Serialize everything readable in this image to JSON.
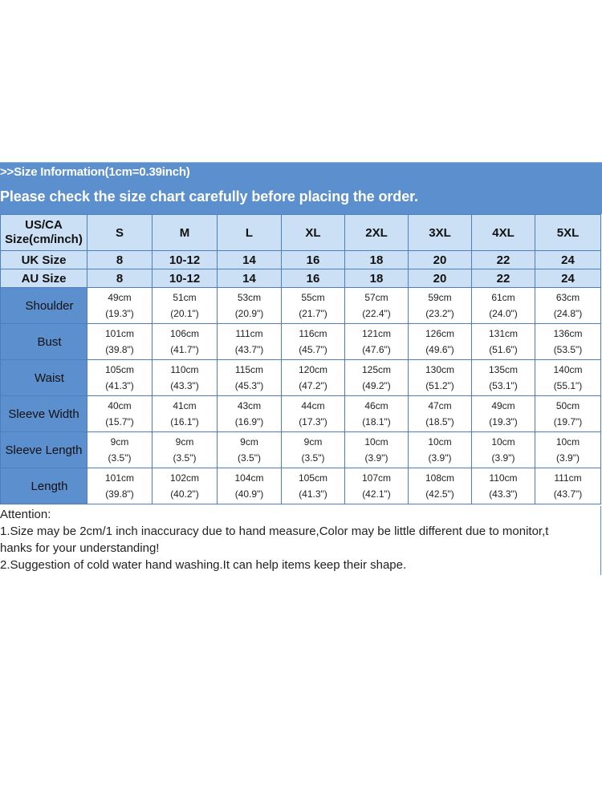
{
  "header": {
    "info": ">>Size Information(1cm=0.39inch)",
    "notice": "Please check the size chart carefully before placing the order."
  },
  "table": {
    "corner_line1": "US/CA",
    "corner_line2": "Size(cm/inch)",
    "sizes": [
      "S",
      "M",
      "L",
      "XL",
      "2XL",
      "3XL",
      "4XL",
      "5XL"
    ],
    "uk_label": "UK Size",
    "uk": [
      "8",
      "10-12",
      "14",
      "16",
      "18",
      "20",
      "22",
      "24"
    ],
    "au_label": "AU Size",
    "au": [
      "8",
      "10-12",
      "14",
      "16",
      "18",
      "20",
      "22",
      "24"
    ],
    "measurements": [
      {
        "label": "Shoulder",
        "cm": [
          "49cm",
          "51cm",
          "53cm",
          "55cm",
          "57cm",
          "59cm",
          "61cm",
          "63cm"
        ],
        "inch": [
          "(19.3\")",
          "(20.1\")",
          "(20.9\")",
          "(21.7\")",
          "(22.4\")",
          "(23.2\")",
          "(24.0\")",
          "(24.8\")"
        ]
      },
      {
        "label": "Bust",
        "cm": [
          "101cm",
          "106cm",
          "111cm",
          "116cm",
          "121cm",
          "126cm",
          "131cm",
          "136cm"
        ],
        "inch": [
          "(39.8\")",
          "(41.7\")",
          "(43.7\")",
          "(45.7\")",
          "(47.6\")",
          "(49.6\")",
          "(51.6\")",
          "(53.5\")"
        ]
      },
      {
        "label": "Waist",
        "cm": [
          "105cm",
          "110cm",
          "115cm",
          "120cm",
          "125cm",
          "130cm",
          "135cm",
          "140cm"
        ],
        "inch": [
          "(41.3\")",
          "(43.3\")",
          "(45.3\")",
          "(47.2\")",
          "(49.2\")",
          "(51.2\")",
          "(53.1\")",
          "(55.1\")"
        ]
      },
      {
        "label": "Sleeve Width",
        "cm": [
          "40cm",
          "41cm",
          "43cm",
          "44cm",
          "46cm",
          "47cm",
          "49cm",
          "50cm"
        ],
        "inch": [
          "(15.7\")",
          "(16.1\")",
          "(16.9\")",
          "(17.3\")",
          "(18.1\")",
          "(18.5\")",
          "(19.3\")",
          "(19.7\")"
        ]
      },
      {
        "label": "Sleeve Length",
        "cm": [
          "9cm",
          "9cm",
          "9cm",
          "9cm",
          "10cm",
          "10cm",
          "10cm",
          "10cm"
        ],
        "inch": [
          "(3.5\")",
          "(3.5\")",
          "(3.5\")",
          "(3.5\")",
          "(3.9\")",
          "(3.9\")",
          "(3.9\")",
          "(3.9\")"
        ]
      },
      {
        "label": "Length",
        "cm": [
          "101cm",
          "102cm",
          "104cm",
          "105cm",
          "107cm",
          "108cm",
          "110cm",
          "111cm"
        ],
        "inch": [
          "(39.8\")",
          "(40.2\")",
          "(40.9\")",
          "(41.3\")",
          "(42.1\")",
          "(42.5\")",
          "(43.3\")",
          "(43.7\")"
        ]
      }
    ]
  },
  "attention": {
    "title": "Attention:",
    "line1": "1.Size may be 2cm/1 inch inaccuracy due to hand measure,Color may be little different due to monitor,t",
    "line1_cont": "hanks for your understanding!",
    "line2": "2.Suggestion of cold water hand washing.It can help items keep their shape."
  },
  "colors": {
    "header_blue": "#5b8fcd",
    "light_blue": "#cce0f5",
    "border_blue": "#4d7fbf"
  }
}
